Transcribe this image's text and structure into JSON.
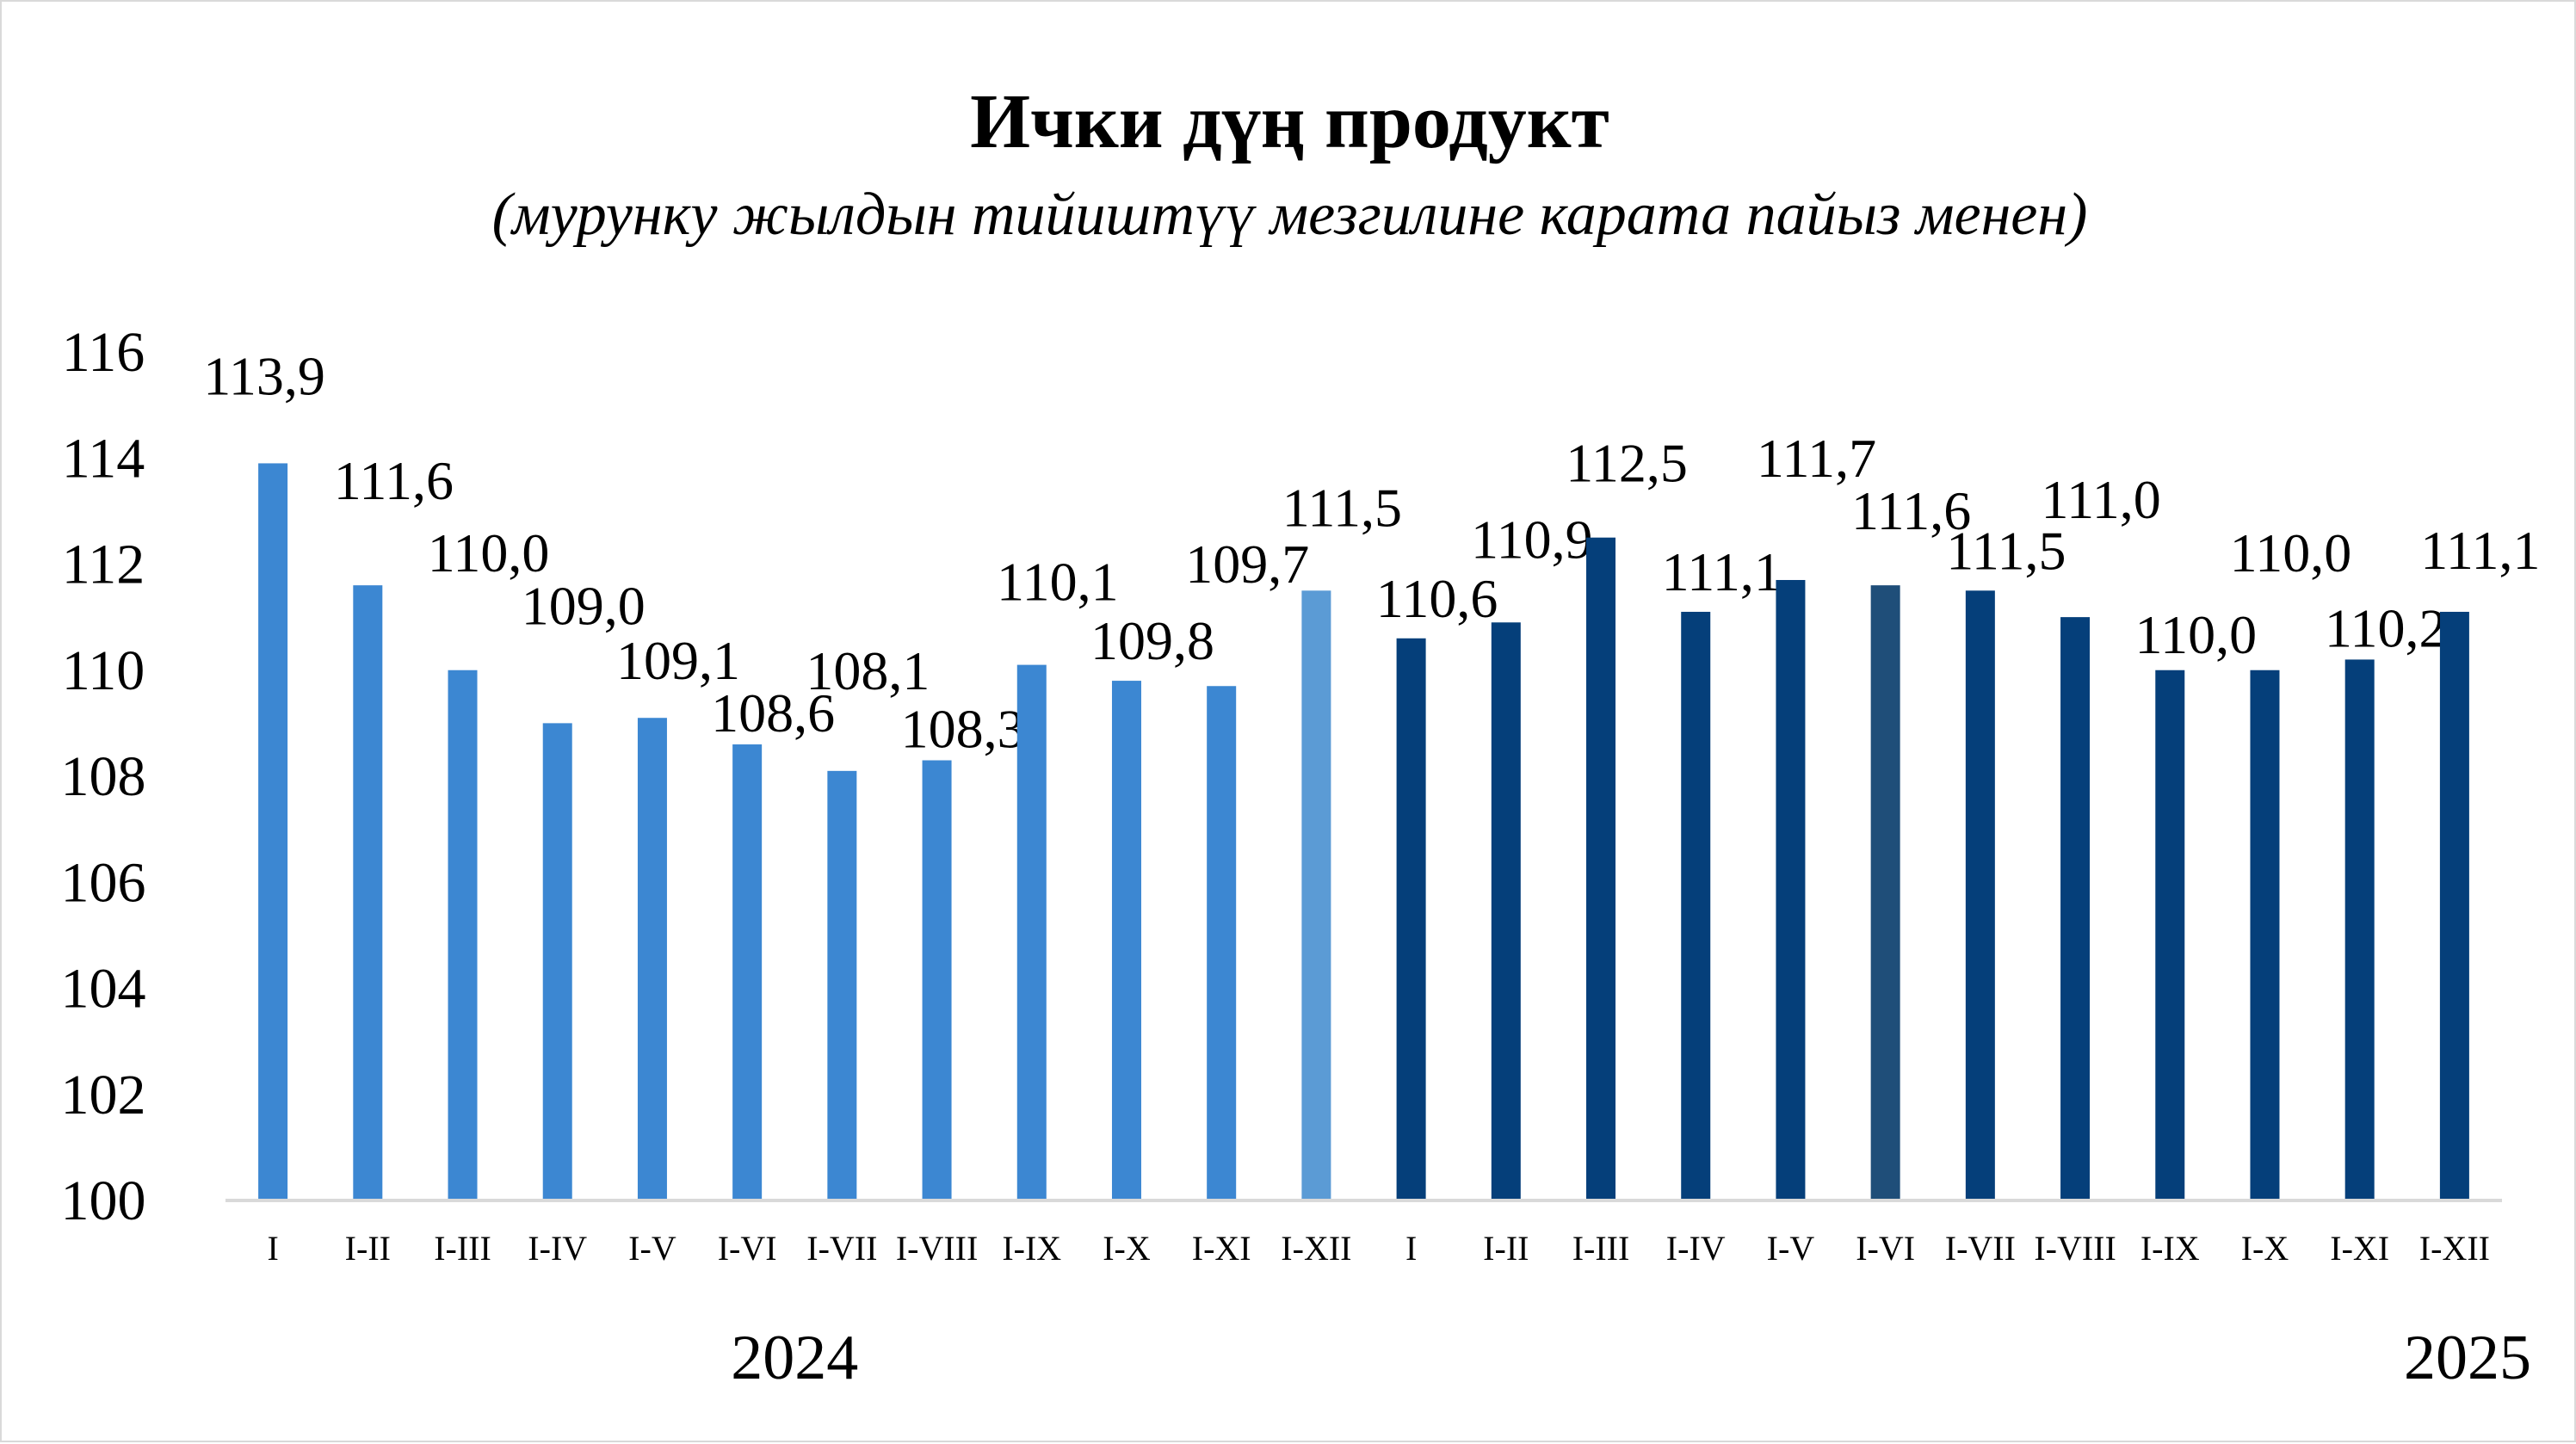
{
  "chart_data": {
    "type": "bar",
    "title": "Ички дүң продукт",
    "subtitle": "(мурунку жылдын тийиштүү мезгилине карата пайыз менен)",
    "xlabel": "",
    "ylabel": "",
    "ylim": [
      100,
      116
    ],
    "yticks": [
      "100",
      "102",
      "104",
      "106",
      "108",
      "110",
      "112",
      "114",
      "116"
    ],
    "grid": false,
    "legend": "none",
    "categories": [
      "I",
      "I-II",
      "I-III",
      "I-IV",
      "I-V",
      "I-VI",
      "I-VII",
      "I-VIII",
      "I-IX",
      "I-X",
      "I-XI",
      "I-XII",
      "I",
      "I-II",
      "I-III",
      "I-IV",
      "I-V",
      "I-VI",
      "I-VII",
      "I-VIII",
      "I-IX",
      "I-X",
      "I-XI",
      "I-XII"
    ],
    "values": [
      113.9,
      111.6,
      110.0,
      109.0,
      109.1,
      108.6,
      108.1,
      108.3,
      110.1,
      109.8,
      109.7,
      111.5,
      110.6,
      110.9,
      112.5,
      111.1,
      111.7,
      111.6,
      111.5,
      111.0,
      110.0,
      110.0,
      110.2,
      111.1
    ],
    "value_labels": [
      "113,9",
      "111,6",
      "110,0",
      "109,0",
      "109,1",
      "108,6",
      "108,1",
      "108,3",
      "110,1",
      "109,8",
      "109,7",
      "111,5",
      "110,6",
      "110,9",
      "112,5",
      "111,1",
      "111,7",
      "111,6",
      "111,5",
      "111,0",
      "110,0",
      "110,0",
      "110,2",
      "111,1"
    ],
    "groups": [
      {
        "label": "2024",
        "count": 12
      },
      {
        "label": "2025",
        "count": 12
      }
    ],
    "colors": {
      "bar_2024": "#3C87D2",
      "bar_2024_dec": "#5B9BD5",
      "bar_2025": "#053F7A",
      "bar_2025_jun": "#1F4E79",
      "axis": "#d9d9d9"
    },
    "bar_colors": [
      "#3C87D2",
      "#3C87D2",
      "#3C87D2",
      "#3C87D2",
      "#3C87D2",
      "#3C87D2",
      "#3C87D2",
      "#3C87D2",
      "#3C87D2",
      "#3C87D2",
      "#3C87D2",
      "#5B9BD5",
      "#053F7A",
      "#053F7A",
      "#053F7A",
      "#053F7A",
      "#053F7A",
      "#1F4E79",
      "#053F7A",
      "#053F7A",
      "#053F7A",
      "#053F7A",
      "#053F7A",
      "#053F7A"
    ]
  }
}
